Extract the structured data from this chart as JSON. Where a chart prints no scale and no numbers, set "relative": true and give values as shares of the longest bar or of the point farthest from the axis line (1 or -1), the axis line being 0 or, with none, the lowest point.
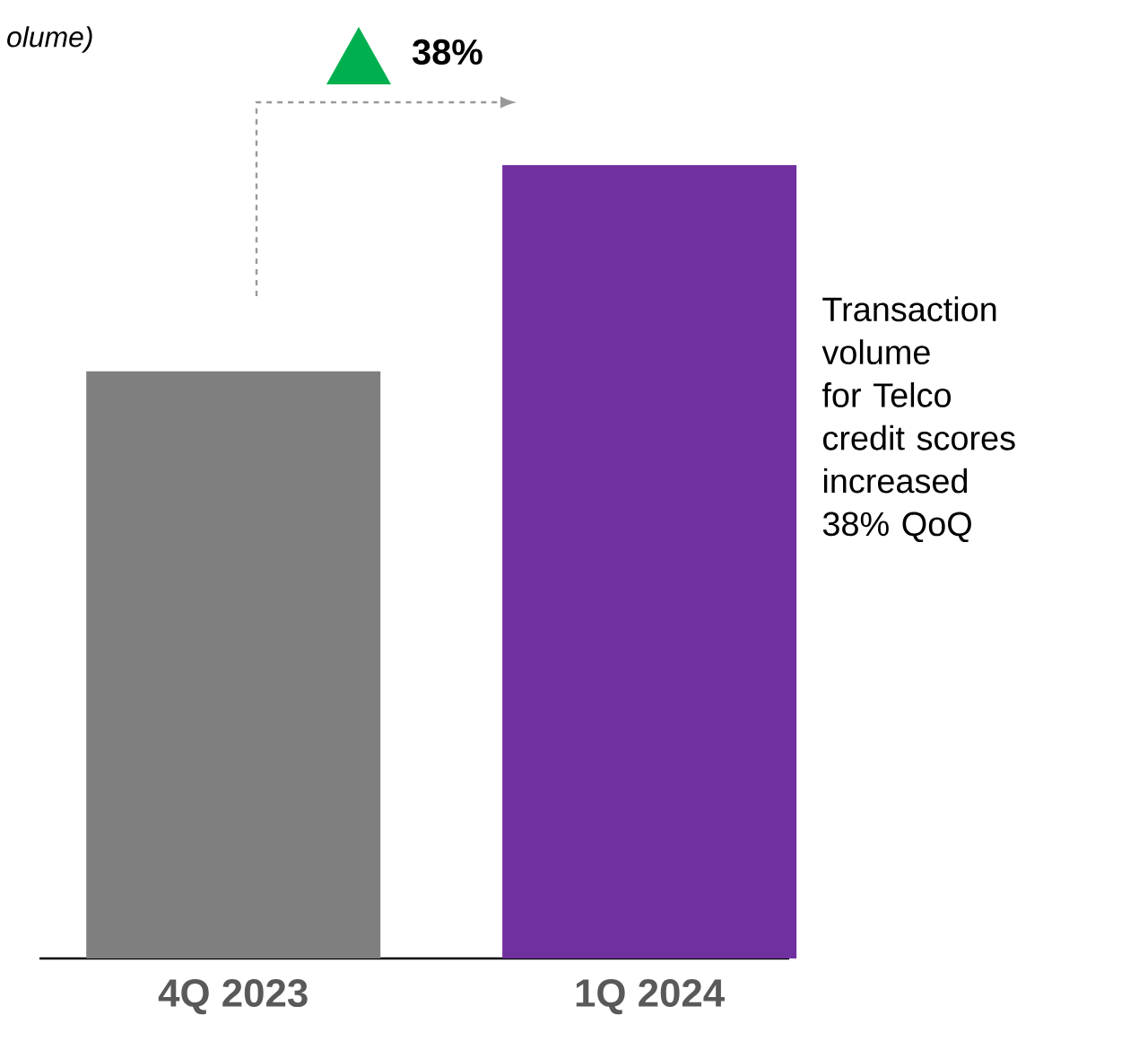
{
  "chart_data": {
    "type": "bar",
    "relative": true,
    "title": "olume)",
    "categories": [
      "4Q 2023",
      "1Q 2024"
    ],
    "values": [
      0.74,
      1
    ],
    "colors": [
      "#7f7f7f",
      "#7030a0"
    ],
    "annotations": [
      "38%",
      "Transaction volume for Telco credit scores increased 38% QoQ"
    ]
  }
}
